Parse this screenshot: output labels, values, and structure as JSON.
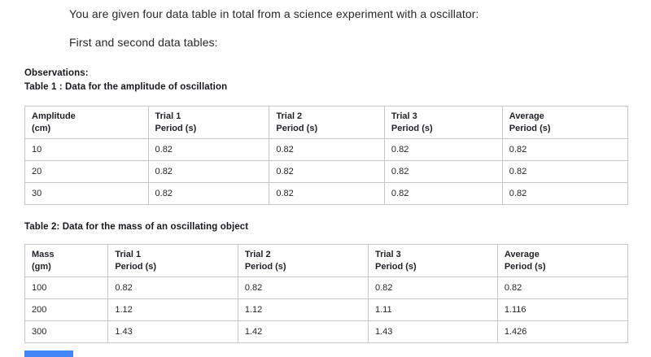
{
  "intro": {
    "line1": "You are given four data table in total from a science experiment with a oscillator:",
    "line2": "First and second data tables:"
  },
  "observations_heading": "Observations:",
  "tables": [
    {
      "title": "Table 1 : Data for the amplitude of oscillation",
      "headers": [
        [
          "Amplitude",
          "(cm)"
        ],
        [
          "Trial 1",
          "Period (s)"
        ],
        [
          "Trial 2",
          "Period (s)"
        ],
        [
          "Trial 3",
          "Period (s)"
        ],
        [
          "Average",
          "Period (s)"
        ]
      ],
      "rows": [
        [
          "10",
          "0.82",
          "0.82",
          "0.82",
          "0.82"
        ],
        [
          "20",
          "0.82",
          "0.82",
          "0.82",
          "0.82"
        ],
        [
          "30",
          "0.82",
          "0.82",
          "0.82",
          "0.82"
        ]
      ]
    },
    {
      "title": "Table 2: Data for the mass of an oscillating object",
      "headers": [
        [
          "Mass",
          "(gm)"
        ],
        [
          "Trial 1",
          "Period (s)"
        ],
        [
          "Trial 2",
          "Period (s)"
        ],
        [
          "Trial 3",
          "Period (s)"
        ],
        [
          "Average",
          "Period (s)"
        ]
      ],
      "rows": [
        [
          "100",
          "0.82",
          "0.82",
          "0.82",
          "0.82"
        ],
        [
          "200",
          "1.12",
          "1.12",
          "1.11",
          "1.116"
        ],
        [
          "300",
          "1.43",
          "1.42",
          "1.43",
          "1.426"
        ]
      ]
    }
  ],
  "colors": {
    "background": "#ffffff",
    "table_border": "#c6c6c6",
    "text": "#1e2126",
    "blue_bar": "#4285f4"
  }
}
